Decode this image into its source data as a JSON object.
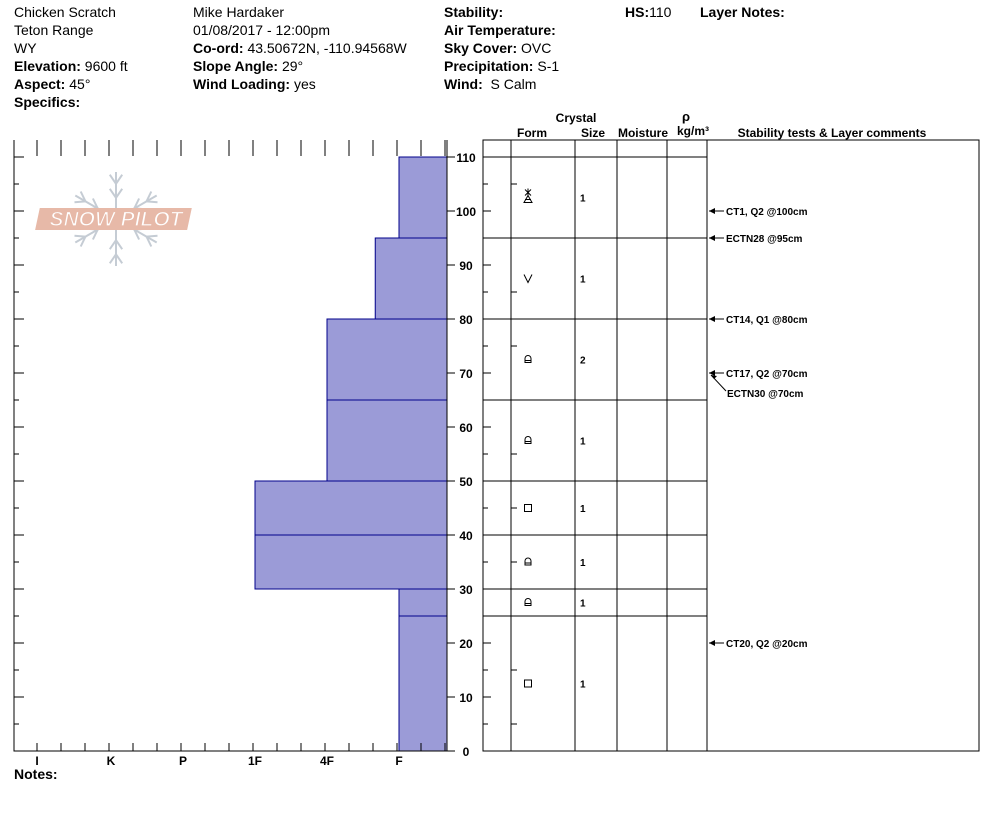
{
  "header": {
    "location_name": "Chicken Scratch",
    "range": "Teton Range",
    "state": "WY",
    "elevation_label": "Elevation:",
    "elevation_value": "9600 ft",
    "aspect_label": "Aspect:",
    "aspect_value": "45°",
    "specifics_label": "Specifics:",
    "observer": "Mike Hardaker",
    "datetime": "01/08/2017 - 12:00pm",
    "coord_label": "Co-ord:",
    "coord_value": "43.50672N, -110.94568W",
    "slope_label": "Slope Angle:",
    "slope_value": "29°",
    "wind_loading_label": "Wind Loading:",
    "wind_loading_value": "yes",
    "stability_label": "Stability:",
    "air_temp_label": "Air Temperature:",
    "sky_cover_label": "Sky Cover:",
    "sky_cover_value": "OVC",
    "precip_label": "Precipitation:",
    "precip_value": "S-1",
    "wind_label": "Wind:",
    "wind_value": "S Calm",
    "hs_label": "HS:",
    "hs_value": "110",
    "layer_notes_label": "Layer Notes:"
  },
  "notes_label": "Notes:",
  "logo_text": "SNOW PILOT",
  "columns": {
    "crystal": "Crystal",
    "form": "Form",
    "size": "Size",
    "moisture": "Moisture",
    "rho": "ρ",
    "density_unit": "kg/m³",
    "stability": "Stability tests & Layer comments"
  },
  "colors": {
    "hardness_fill": "#9b9bd7",
    "hardness_stroke": "#00008b",
    "logo": "#e7b9a8"
  },
  "chart_data": {
    "type": "bar",
    "title": "",
    "xlabel": "",
    "ylabel": "",
    "ylim": [
      0,
      110
    ],
    "y_ticks": [
      "0",
      "10",
      "20",
      "30",
      "40",
      "50",
      "60",
      "70",
      "80",
      "90",
      "100",
      "110"
    ],
    "hardness_ticks": [
      "I",
      "K",
      "P",
      "1F",
      "4F",
      "F"
    ],
    "hardness_scale": {
      "F": 1,
      "4F": 2,
      "1F": 3
    },
    "layers": [
      {
        "top": 110,
        "bottom": 95,
        "hardness": 1,
        "form": "faceted-rounded",
        "size": "1"
      },
      {
        "top": 95,
        "bottom": 80,
        "hardness": 1.33,
        "form": "precip-particle",
        "size": "1"
      },
      {
        "top": 80,
        "bottom": 65,
        "hardness": 2,
        "form": "depth-hoar",
        "size": "2"
      },
      {
        "top": 65,
        "bottom": 50,
        "hardness": 2,
        "form": "depth-hoar",
        "size": "1"
      },
      {
        "top": 50,
        "bottom": 40,
        "hardness": 3,
        "form": "faceted",
        "size": "1"
      },
      {
        "top": 40,
        "bottom": 30,
        "hardness": 3,
        "form": "depth-hoar",
        "size": "1"
      },
      {
        "top": 30,
        "bottom": 25,
        "hardness": 1,
        "form": "depth-hoar",
        "size": "1"
      },
      {
        "top": 25,
        "bottom": 0,
        "hardness": 1,
        "form": "faceted",
        "size": "1"
      }
    ],
    "stability_tests": [
      {
        "depth": 100,
        "label": "CT1, Q2 @100cm"
      },
      {
        "depth": 95,
        "label": "ECTN28 @95cm"
      },
      {
        "depth": 80,
        "label": "CT14, Q1 @80cm"
      },
      {
        "depth": 70,
        "label": "CT17, Q2 @70cm"
      },
      {
        "depth": 70,
        "label": "ECTN30 @70cm",
        "offset": 1
      },
      {
        "depth": 20,
        "label": "CT20, Q2 @20cm"
      }
    ]
  }
}
